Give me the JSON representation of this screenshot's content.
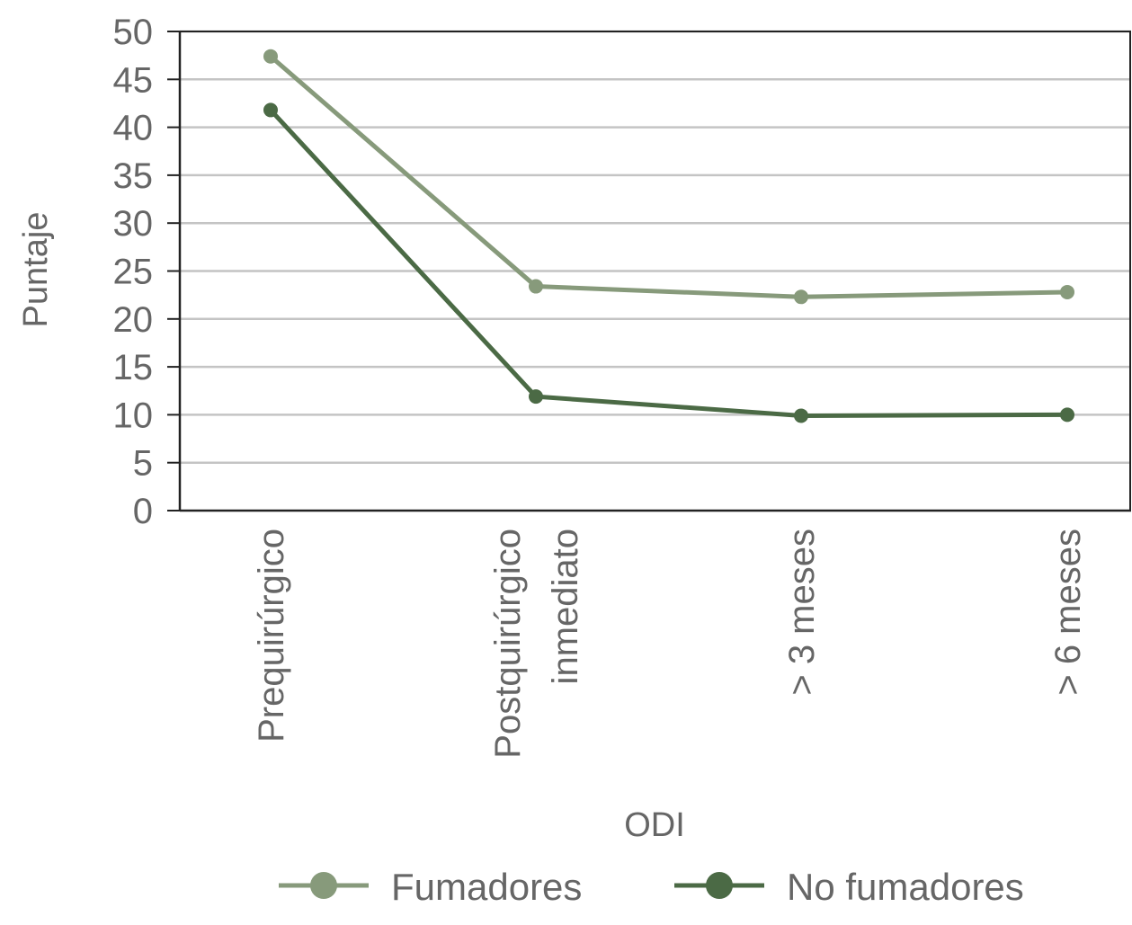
{
  "chart_data": {
    "type": "line",
    "title": "",
    "xlabel": "ODI",
    "ylabel": "Puntaje",
    "ylim": [
      0,
      50
    ],
    "yticks": [
      "0",
      "5",
      "10",
      "15",
      "20",
      "25",
      "30",
      "35",
      "40",
      "45",
      "50"
    ],
    "grid": true,
    "legend_position": "bottom",
    "categories": [
      [
        "Prequirúrgico"
      ],
      [
        "Postquirúrgico",
        "inmediato"
      ],
      [
        "> 3 meses"
      ],
      [
        "> 6 meses"
      ]
    ],
    "series": [
      {
        "name": "Fumadores",
        "color": "#879a7b",
        "values": [
          47.4,
          23.4,
          22.3,
          22.8
        ]
      },
      {
        "name": "No fumadores",
        "color": "#4b6a45",
        "values": [
          41.8,
          11.9,
          9.9,
          10.0
        ]
      }
    ]
  }
}
